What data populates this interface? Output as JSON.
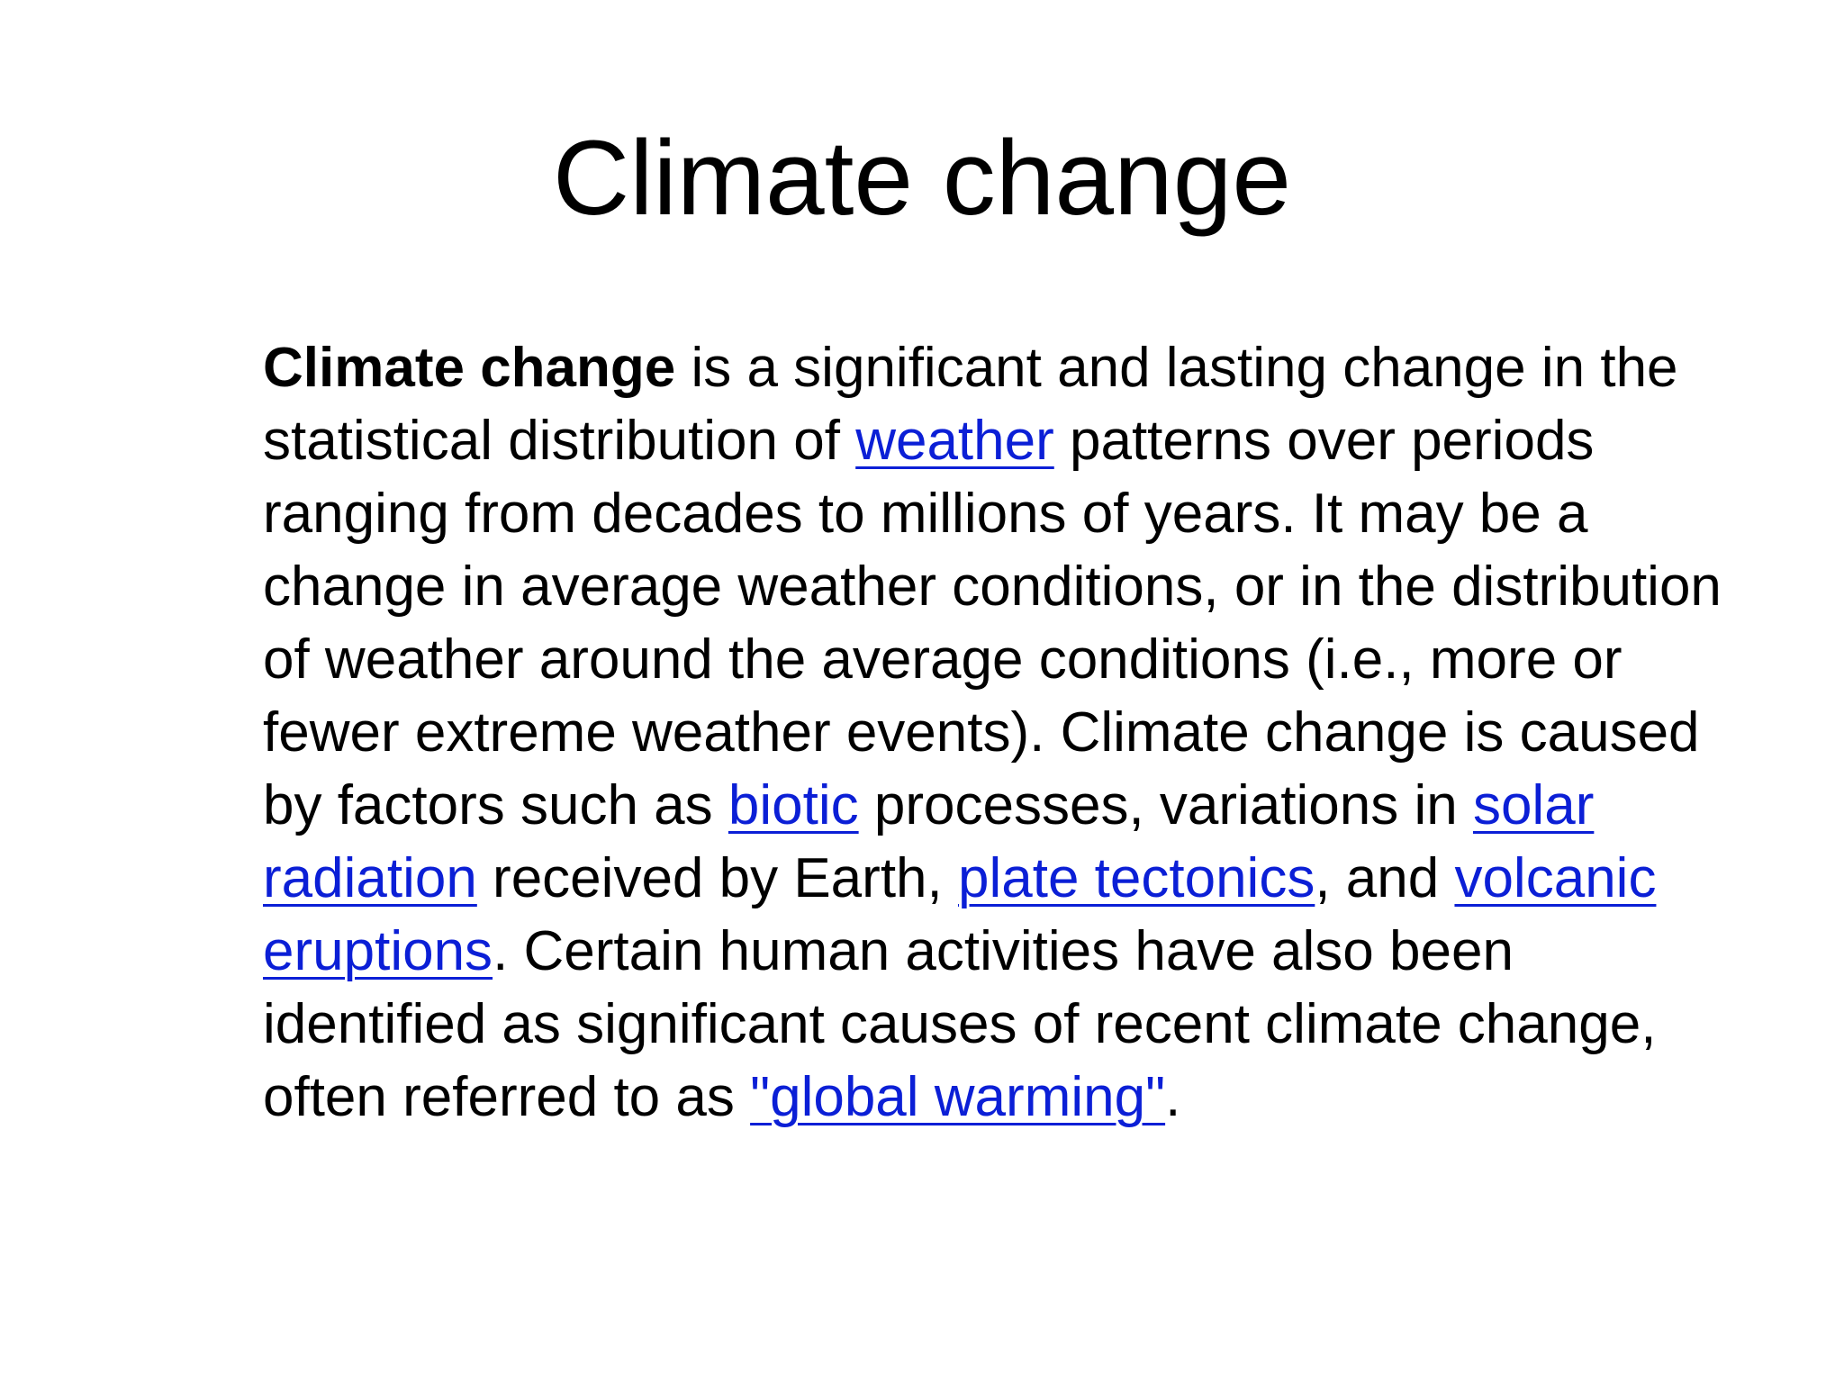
{
  "slide": {
    "title": "Climate change",
    "body": {
      "term": "Climate change",
      "t1": " is a significant and lasting change in the statistical distribution of ",
      "link_weather": "weather",
      "t2": " patterns over periods ranging from decades to millions of years. It may be a change in average weather conditions, or in the distribution of weather around the average conditions (i.e., more or fewer extreme weather events). Climate change is caused by factors such as ",
      "link_biotic": "biotic",
      "t3": " processes, variations in ",
      "link_solar": "solar radiation",
      "t4": " received by Earth, ",
      "link_plate": "plate tectonics",
      "t5": ", and ",
      "link_volcanic": "volcanic eruptions",
      "t6": ". Certain human activities have also been identified as significant causes of recent climate change, often referred to as ",
      "link_global": "\"global warming\"",
      "t7": "."
    }
  },
  "colors": {
    "link": "#0b1fd6",
    "text": "#000000",
    "background": "#ffffff"
  }
}
